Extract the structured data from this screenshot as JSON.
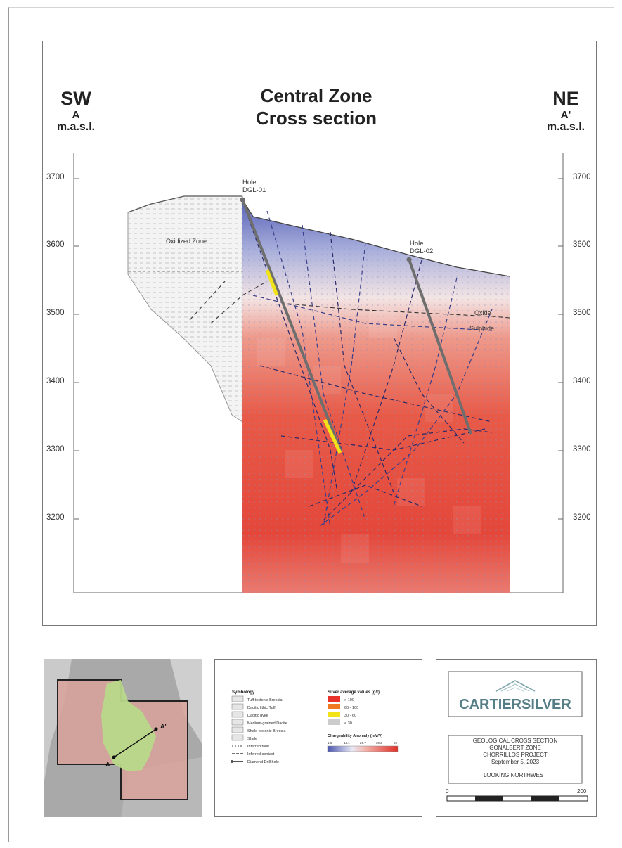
{
  "header": {
    "left": {
      "dir": "SW",
      "label": "A",
      "units": "m.a.s.l."
    },
    "right": {
      "dir": "NE",
      "label": "A'",
      "units": "m.a.s.l."
    },
    "title": [
      "Central Zone",
      "Cross section"
    ]
  },
  "elevation_ticks": [
    "3700",
    "3600",
    "3500",
    "3400",
    "3300",
    "3200"
  ],
  "section": {
    "holes": [
      {
        "line1": "Hole",
        "line2": "DGL-01"
      },
      {
        "line1": "Hole",
        "line2": "DGL-02"
      }
    ],
    "zone_labels": {
      "oxidized": "Oxidized Zone",
      "oxide": "Oxide",
      "sulphide": "Sulphide"
    }
  },
  "inset_map": {
    "point_a": "A",
    "point_a_prime": "A'"
  },
  "legend": {
    "symbology_title": "Symbology",
    "lithology": [
      "Tuff tectonic Breccia",
      "Dacitic lithic Tuff",
      "Dacitic dyke",
      "Medium-grained Dacite",
      "Shale tectonic Breccia",
      "Shale"
    ],
    "lines": [
      "Inferred fault",
      "Inferred contact",
      "Diamond Drill hole"
    ],
    "silver_title": "Silver average values (g/t)",
    "silver_classes": [
      {
        "label": "> 100",
        "color": "#e8322a"
      },
      {
        "label": "60 - 100",
        "color": "#f07a22"
      },
      {
        "label": "30 - 60",
        "color": "#f2e21a"
      },
      {
        "label": "< 30",
        "color": "#cccccc"
      }
    ],
    "chargeability_title": "Chargeability Anomaly (mV/V)",
    "chargeability_ticks": [
      "1.6",
      "14.1",
      "26.7",
      "39.2",
      "50"
    ]
  },
  "title_block": {
    "logo_text": "CARTIERSILVER",
    "lines": [
      "GEOLOGICAL CROSS SECTION",
      "GONALBERT ZONE",
      "CHORRILLOS PROJECT",
      "September 5, 2023"
    ],
    "view": "LOOKING NORTHWEST",
    "scale_start": "0",
    "scale_end": "200"
  }
}
